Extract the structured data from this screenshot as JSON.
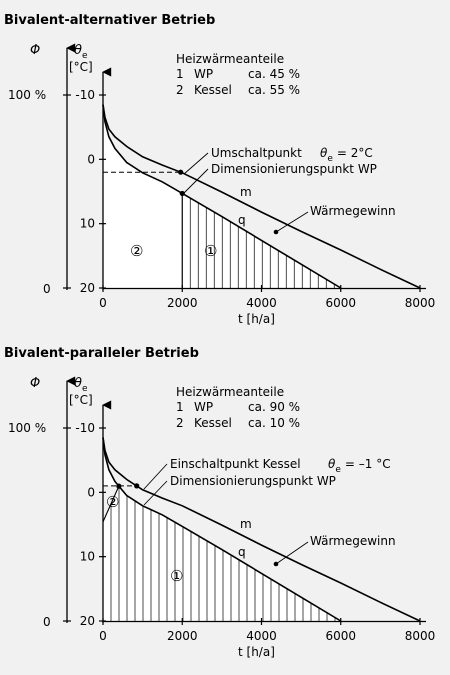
{
  "chart_data": [
    {
      "type": "line",
      "title": "Bivalent-alternativer Betrieb",
      "xlabel": "t [h/a]",
      "y_phi_label": "Φ",
      "y_theta_label": "θ",
      "y_theta_sub": "e",
      "y_theta_unit": "[°C]",
      "x_ticks": [
        "0",
        "2000",
        "4000",
        "6000",
        "8000"
      ],
      "theta_ticks": [
        "-10",
        "0",
        "10",
        "20"
      ],
      "phi_ticks": [
        "100 %",
        "0"
      ],
      "xlim": [
        0,
        8000
      ],
      "ylim_theta": [
        -10,
        20
      ],
      "legend_title": "Heizwärmeanteile",
      "legend_rows": [
        {
          "num": "1",
          "name": "WP",
          "share": "ca. 45 %"
        },
        {
          "num": "2",
          "name": "Kessel",
          "share": "ca. 55 %"
        }
      ],
      "annotations": {
        "switch_point": "Umschaltpunkt",
        "switch_formula_pre": "θ",
        "switch_formula_sub": "e",
        "switch_formula_post": "= 2°C",
        "dimension_point": "Dimensionierungspunkt WP",
        "curve_m": "m",
        "curve_q": "q",
        "gain": "Wärmegewinn",
        "area_1": "①",
        "area_2": "②"
      },
      "switch_t": 2000,
      "switch_theta": 2,
      "series": [
        {
          "name": "m",
          "x": [
            0,
            50,
            150,
            300,
            600,
            1000,
            1500,
            2000,
            3000,
            4000,
            5000,
            6000,
            7000,
            8000
          ],
          "y": [
            -8.5,
            -6.5,
            -4.7,
            -3.5,
            -2,
            -0.4,
            0.9,
            2.1,
            5.1,
            8.2,
            11.2,
            14.1,
            17.1,
            20
          ]
        },
        {
          "name": "q",
          "x": [
            0,
            50,
            150,
            300,
            600,
            1000,
            1500,
            2000,
            3000,
            4000,
            5000,
            6000
          ],
          "y": [
            -8.5,
            -5.8,
            -3.5,
            -1.7,
            0.5,
            2.1,
            3.5,
            5.3,
            8.9,
            12.6,
            16.3,
            20
          ]
        }
      ]
    },
    {
      "type": "line",
      "title": "Bivalent-paralleler Betrieb",
      "xlabel": "t [h/a]",
      "y_phi_label": "Φ",
      "y_theta_label": "θ",
      "y_theta_sub": "e",
      "y_theta_unit": "[°C]",
      "x_ticks": [
        "0",
        "2000",
        "4000",
        "6000",
        "8000"
      ],
      "theta_ticks": [
        "-10",
        "0",
        "10",
        "20"
      ],
      "phi_ticks": [
        "100 %",
        "0"
      ],
      "xlim": [
        0,
        8000
      ],
      "ylim_theta": [
        -10,
        20
      ],
      "legend_title": "Heizwärmeanteile",
      "legend_rows": [
        {
          "num": "1",
          "name": "WP",
          "share": "ca. 90 %"
        },
        {
          "num": "2",
          "name": "Kessel",
          "share": "ca. 10 %"
        }
      ],
      "annotations": {
        "switch_point": "Einschaltpunkt Kessel",
        "switch_formula_pre": "θ",
        "switch_formula_sub": "e",
        "switch_formula_post": "= –1 °C",
        "dimension_point": "Dimensionierungspunkt WP",
        "curve_m": "m",
        "curve_q": "q",
        "gain": "Wärmegewinn",
        "area_1": "①",
        "area_2": "②"
      },
      "switch_t": 1000,
      "switch_theta": -1,
      "series": [
        {
          "name": "m",
          "x": [
            0,
            50,
            150,
            300,
            600,
            1000,
            1500,
            2000,
            3000,
            4000,
            5000,
            6000,
            7000,
            8000
          ],
          "y": [
            -8.5,
            -6.5,
            -4.7,
            -3.5,
            -2,
            -0.4,
            0.9,
            2.1,
            5.1,
            8.2,
            11.2,
            14.1,
            17.1,
            20
          ]
        },
        {
          "name": "q",
          "x": [
            0,
            50,
            150,
            300,
            600,
            1000,
            1500,
            2000,
            3000,
            4000,
            5000,
            6000
          ],
          "y": [
            -8.5,
            -5.8,
            -3.5,
            -1.7,
            0.5,
            2.1,
            3.5,
            5.3,
            8.9,
            12.6,
            16.3,
            20
          ]
        }
      ]
    }
  ]
}
